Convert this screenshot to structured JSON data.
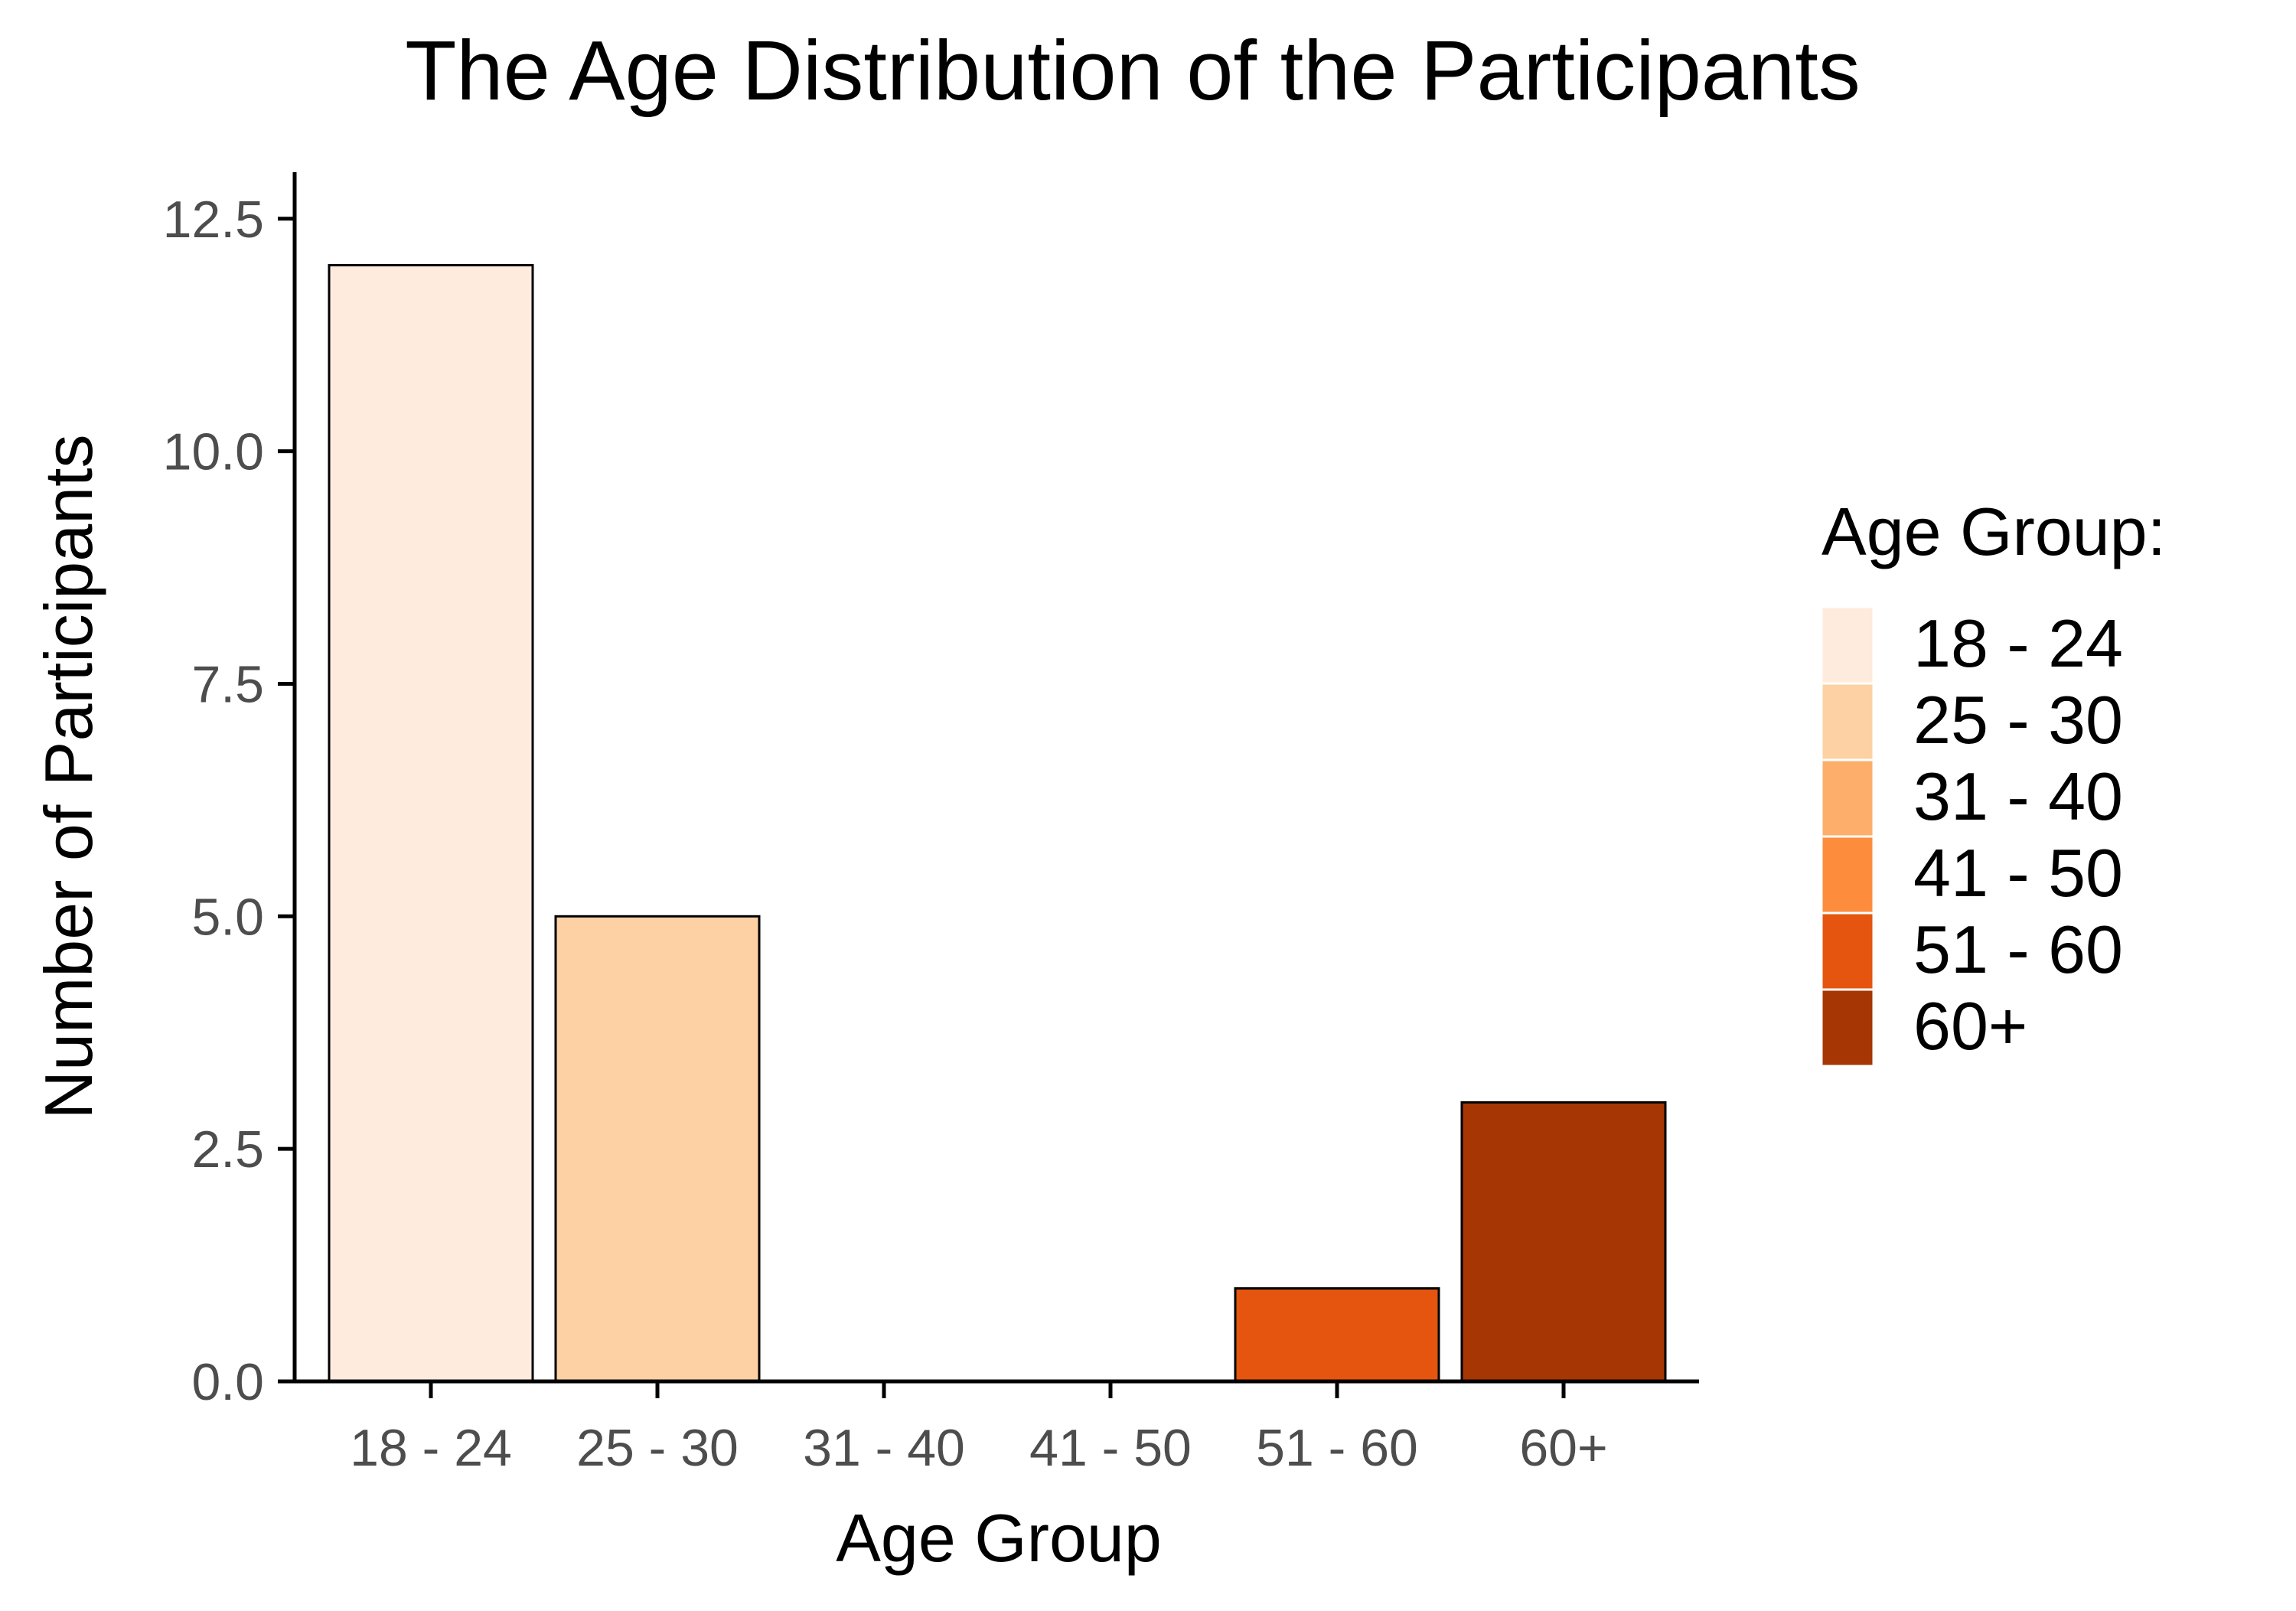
{
  "chart_data": {
    "type": "bar",
    "title": "The Age Distribution of the Participants",
    "xlabel": "Age Group",
    "ylabel": "Number of Participants",
    "categories": [
      "18 - 24",
      "25 - 30",
      "31 - 40",
      "41 - 50",
      "51 - 60",
      "60+"
    ],
    "values": [
      12,
      5,
      0,
      0,
      1,
      3
    ],
    "colors": [
      "#FEEBDD",
      "#FDD1A3",
      "#FDAE6B",
      "#FD8D3C",
      "#E5550F",
      "#A63603"
    ],
    "ylim": [
      0,
      13
    ],
    "yticks": [
      0,
      2.5,
      5,
      7.5,
      10,
      12.5
    ],
    "ytick_labels": [
      "0.0",
      "2.5",
      "5.0",
      "7.5",
      "10.0",
      "12.5"
    ],
    "grid": false,
    "legend": {
      "title": "Age Group:",
      "placement": "right",
      "entries": [
        "18 - 24",
        "25 - 30",
        "31 - 40",
        "41 - 50",
        "51 - 60",
        "60+"
      ]
    }
  }
}
